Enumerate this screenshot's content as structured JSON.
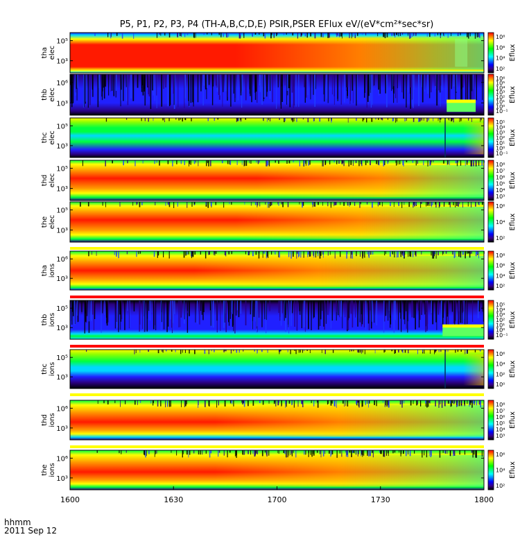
{
  "title": "P5, P1, P2, P3, P4 (TH-A,B,C,D,E) PSIR,PSER EFlux eV/(eV*cm²*sec*sr)",
  "corner_label_1": "hhmm",
  "corner_label_2": "2011 Sep 12",
  "colorbar_label": "Eflux",
  "chart_data": {
    "type": "heatmap",
    "x_axis": {
      "range": [
        "1600",
        "1800"
      ],
      "ticks": [
        "1600",
        "1630",
        "1700",
        "1730",
        "1800"
      ]
    },
    "panels": [
      {
        "probe": "tha",
        "species": "elec",
        "yticks": [
          "10⁵",
          "10³"
        ],
        "cbar_ticks": [
          "10⁸",
          "10⁶",
          "10⁴",
          "10²"
        ],
        "profile": [
          [
            0,
            "blue"
          ],
          [
            0.06,
            "cyan"
          ],
          [
            0.16,
            "yellow"
          ],
          [
            0.3,
            "red"
          ],
          [
            0.85,
            "red"
          ],
          [
            0.94,
            "yellow"
          ],
          [
            1,
            "cyan"
          ]
        ],
        "fade_start": 0.4,
        "noise": 0.3,
        "events": [
          {
            "x": 0.93,
            "w": 0.03,
            "kind": "tail"
          }
        ]
      },
      {
        "probe": "thb",
        "species": "elec",
        "yticks": [
          "10⁶",
          "10³"
        ],
        "cbar_ticks": [
          "10⁶",
          "10⁵",
          "10⁴",
          "10³",
          "10²",
          "10¹",
          "10⁰",
          "10⁻¹"
        ],
        "profile": [
          [
            0,
            "navy"
          ],
          [
            0.35,
            "blue"
          ],
          [
            0.7,
            "blue"
          ],
          [
            0.9,
            "navy"
          ],
          [
            1,
            "black"
          ]
        ],
        "fade_start": 1.0,
        "noise": 1.0,
        "events": [
          {
            "x": 0.91,
            "w": 0.07,
            "kind": "green_patch"
          }
        ]
      },
      {
        "probe": "thc",
        "species": "elec",
        "yticks": [
          "10⁵",
          "10³"
        ],
        "cbar_ticks": [
          "10⁵",
          "10⁴",
          "10³",
          "10²",
          "10¹",
          "10⁰",
          "10⁻¹"
        ],
        "profile": [
          [
            0,
            "yellow"
          ],
          [
            0.1,
            "lime"
          ],
          [
            0.25,
            "green"
          ],
          [
            0.35,
            "green"
          ],
          [
            0.45,
            "cyan"
          ],
          [
            0.6,
            "green"
          ],
          [
            0.8,
            "blue"
          ],
          [
            0.92,
            "navy"
          ],
          [
            1,
            "black"
          ]
        ],
        "fade_start": 0.95,
        "noise": 0.15,
        "events": [
          {
            "x": 0.905,
            "w": 0.004,
            "kind": "line"
          }
        ]
      },
      {
        "probe": "thd",
        "species": "elec",
        "yticks": [
          "10⁵",
          "10³"
        ],
        "cbar_ticks": [
          "10⁸",
          "10⁷",
          "10⁶",
          "10⁵",
          "10⁴",
          "10³"
        ],
        "profile": [
          [
            0,
            "green"
          ],
          [
            0.1,
            "yellow"
          ],
          [
            0.25,
            "orange"
          ],
          [
            0.45,
            "red"
          ],
          [
            0.7,
            "orange"
          ],
          [
            0.82,
            "yellow"
          ],
          [
            0.92,
            "green"
          ],
          [
            1,
            "navy"
          ]
        ],
        "fade_start": 0.45,
        "noise": 0.3,
        "events": []
      },
      {
        "probe": "the",
        "species": "elec",
        "yticks": [
          "10⁵",
          "10³"
        ],
        "cbar_ticks": [
          "10⁶",
          "10⁴",
          "10²"
        ],
        "profile": [
          [
            0,
            "green"
          ],
          [
            0.1,
            "yellow"
          ],
          [
            0.25,
            "orange"
          ],
          [
            0.45,
            "red"
          ],
          [
            0.7,
            "orange"
          ],
          [
            0.82,
            "yellow"
          ],
          [
            0.92,
            "green"
          ],
          [
            1,
            "navy"
          ]
        ],
        "fade_start": 0.4,
        "noise": 0.3,
        "events": []
      },
      {
        "probe": "tha",
        "species": "ions",
        "yticks": [
          "10⁶",
          "10³"
        ],
        "cbar_ticks": [
          "10⁸",
          "10⁶",
          "10⁴",
          "10²"
        ],
        "profile": [
          [
            0,
            "green"
          ],
          [
            0.12,
            "yellow"
          ],
          [
            0.28,
            "orange"
          ],
          [
            0.5,
            "red"
          ],
          [
            0.72,
            "orange"
          ],
          [
            0.85,
            "yellow"
          ],
          [
            0.94,
            "green"
          ],
          [
            1,
            "blue"
          ]
        ],
        "fade_start": 0.3,
        "noise": 0.45,
        "events": []
      },
      {
        "probe": "thb",
        "species": "ions",
        "yticks": [
          "10⁵",
          "10³"
        ],
        "cbar_ticks": [
          "10⁵",
          "10⁴",
          "10³",
          "10²",
          "10¹",
          "10⁰",
          "10⁻¹"
        ],
        "profile": [
          [
            0,
            "black"
          ],
          [
            0.1,
            "navy"
          ],
          [
            0.4,
            "blue"
          ],
          [
            0.75,
            "blue"
          ],
          [
            0.86,
            "cyan"
          ],
          [
            0.92,
            "green"
          ],
          [
            1,
            "cyan"
          ]
        ],
        "fade_start": 1.0,
        "noise": 1.0,
        "events": [
          {
            "x": 0.9,
            "w": 0.1,
            "kind": "green_patch"
          }
        ]
      },
      {
        "probe": "thc",
        "species": "ions",
        "yticks": [
          "10⁵",
          "10³"
        ],
        "cbar_ticks": [
          "10⁶",
          "10⁴",
          "10²",
          "10⁰"
        ],
        "profile": [
          [
            0,
            "yellow"
          ],
          [
            0.12,
            "lime"
          ],
          [
            0.3,
            "green"
          ],
          [
            0.45,
            "cyan"
          ],
          [
            0.55,
            "cyan"
          ],
          [
            0.7,
            "blue"
          ],
          [
            0.85,
            "navy"
          ],
          [
            1,
            "black"
          ]
        ],
        "fade_start": 0.95,
        "noise": 0.15,
        "events": [
          {
            "x": 0.905,
            "w": 0.004,
            "kind": "line"
          }
        ]
      },
      {
        "probe": "thd",
        "species": "ions",
        "yticks": [
          "10⁶",
          "10³"
        ],
        "cbar_ticks": [
          "10⁸",
          "10⁷",
          "10⁶",
          "10⁵",
          "10⁴",
          "10³"
        ],
        "profile": [
          [
            0,
            "green"
          ],
          [
            0.12,
            "yellow"
          ],
          [
            0.3,
            "orange"
          ],
          [
            0.55,
            "red"
          ],
          [
            0.75,
            "orange"
          ],
          [
            0.85,
            "yellow"
          ],
          [
            0.93,
            "cyan"
          ],
          [
            1,
            "navy"
          ]
        ],
        "fade_start": 0.35,
        "noise": 0.45,
        "events": []
      },
      {
        "probe": "the",
        "species": "ions",
        "yticks": [
          "10⁶",
          "10³"
        ],
        "cbar_ticks": [
          "10⁶",
          "10⁴",
          "10²"
        ],
        "profile": [
          [
            0,
            "green"
          ],
          [
            0.12,
            "yellow"
          ],
          [
            0.3,
            "orange"
          ],
          [
            0.55,
            "red"
          ],
          [
            0.75,
            "orange"
          ],
          [
            0.85,
            "yellow"
          ],
          [
            0.93,
            "green"
          ],
          [
            1,
            "navy"
          ]
        ],
        "fade_start": 0.35,
        "noise": 0.45,
        "events": []
      }
    ],
    "colormap": [
      "#000000",
      "#3a0088",
      "#0000ff",
      "#0080ff",
      "#00ffff",
      "#00ff80",
      "#00ff00",
      "#80ff00",
      "#ffff00",
      "#ff8000",
      "#ff0000"
    ],
    "separator_colors": {
      "yellow": "#ffff00",
      "red": "#ff0000"
    }
  }
}
